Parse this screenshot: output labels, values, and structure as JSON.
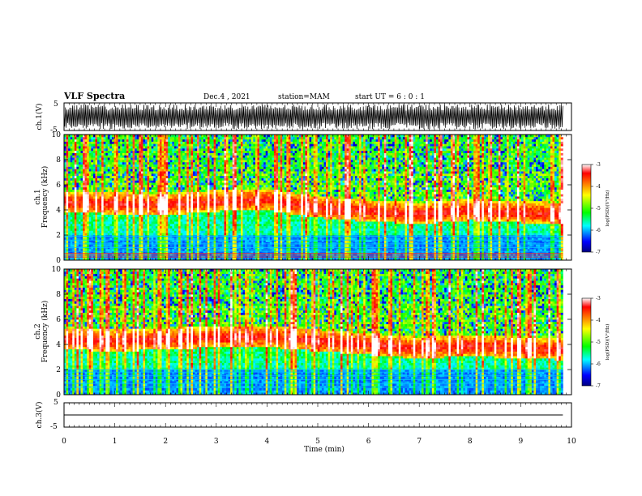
{
  "header": {
    "title": "VLF Spectra",
    "date": "Dec.4 , 2021",
    "station": "station=MAM",
    "start_ut": "start  UT =  6 : 0  : 1"
  },
  "chart_data": [
    {
      "type": "line",
      "name": "ch1-waveform",
      "ylabel": "ch.1(V)",
      "ylim": [
        -5,
        5
      ],
      "yticks": [
        "5",
        "-5"
      ],
      "xlim": [
        0,
        10
      ],
      "description_values": {
        "amplitude_range_V": [
          -4.5,
          4.5
        ],
        "end_time_min": 9.83
      }
    },
    {
      "type": "heatmap",
      "name": "ch1-spectrogram",
      "ylabel": "ch.1\nFrequency (kHz)",
      "ylabel_line1": "ch.1",
      "ylabel_line2": "Frequency (kHz)",
      "ylim": [
        0,
        10
      ],
      "yticks": [
        "0",
        "2",
        "4",
        "6",
        "8",
        "10"
      ],
      "xlim": [
        0,
        10
      ],
      "data_end_min": 9.83,
      "band_center_khz": [
        [
          0,
          4.6
        ],
        [
          1,
          4.5
        ],
        [
          2,
          4.4
        ],
        [
          3,
          4.7
        ],
        [
          4,
          4.8
        ],
        [
          5,
          4.2
        ],
        [
          6,
          3.9
        ],
        [
          7,
          3.7
        ],
        [
          8,
          4.0
        ],
        [
          9,
          3.8
        ],
        [
          9.83,
          3.7
        ]
      ],
      "horizontal_lines_khz": [
        0.25,
        0.4,
        0.55,
        0.7,
        1.0,
        1.3,
        1.6,
        1.9
      ],
      "colorbar": {
        "label": "log(PSD)(V²/Hz)",
        "range": [
          -7,
          -3
        ],
        "ticks": [
          "-3",
          "-4",
          "-5",
          "-6",
          "-7"
        ],
        "colormap": [
          "#ffffff",
          "#ff0000",
          "#ffff00",
          "#00ff00",
          "#00ffff",
          "#0000ff",
          "#000080"
        ]
      }
    },
    {
      "type": "heatmap",
      "name": "ch2-spectrogram",
      "ylabel": "ch.2\nFrequency (kHz)",
      "ylabel_line1": "ch.2",
      "ylabel_line2": "Frequency (kHz)",
      "ylim": [
        0,
        10
      ],
      "yticks": [
        "0",
        "2",
        "4",
        "6",
        "8",
        "10"
      ],
      "xlim": [
        0,
        10
      ],
      "data_end_min": 9.83,
      "band_center_khz": [
        [
          0,
          4.4
        ],
        [
          1,
          4.3
        ],
        [
          2,
          4.4
        ],
        [
          3,
          4.6
        ],
        [
          4,
          4.6
        ],
        [
          5,
          4.3
        ],
        [
          6,
          4.0
        ],
        [
          7,
          3.7
        ],
        [
          8,
          3.9
        ],
        [
          9,
          3.7
        ],
        [
          9.83,
          3.6
        ]
      ],
      "horizontal_lines_khz": [
        0.6,
        0.9,
        1.2,
        1.5,
        1.8,
        2.0
      ],
      "colorbar": {
        "label": "log(PSD)(V²/Hz)",
        "range": [
          -7,
          -3
        ],
        "ticks": [
          "-3",
          "-4",
          "-5",
          "-6",
          "-7"
        ],
        "colormap": [
          "#ffffff",
          "#ff0000",
          "#ffff00",
          "#00ff00",
          "#00ffff",
          "#0000ff",
          "#000080"
        ]
      }
    },
    {
      "type": "line",
      "name": "ch3-waveform",
      "ylabel": "ch.3(V)",
      "ylim": [
        -5,
        5
      ],
      "yticks": [
        "5",
        "-5"
      ],
      "xlim": [
        0,
        10
      ],
      "xlabel": "Time  (min)",
      "xticks": [
        "0",
        "1",
        "2",
        "3",
        "4",
        "5",
        "6",
        "7",
        "8",
        "9",
        "10"
      ],
      "values_V": [
        0,
        0
      ],
      "x_values_min": [
        0,
        9.83
      ]
    }
  ]
}
